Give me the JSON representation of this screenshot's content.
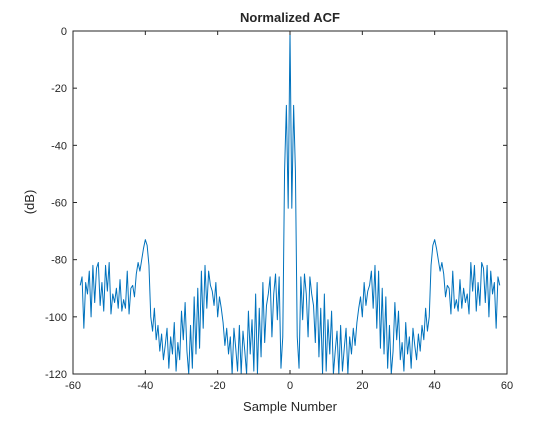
{
  "chart_data": {
    "type": "line",
    "title": "Normalized ACF",
    "xlabel": "Sample Number",
    "ylabel": "(dB)",
    "xlim": [
      -60,
      60
    ],
    "ylim": [
      -120,
      0
    ],
    "xticks": [
      "-60",
      "-40",
      "-20",
      "0",
      "20",
      "40",
      "60"
    ],
    "yticks": [
      "0",
      "-20",
      "-40",
      "-60",
      "-80",
      "-100",
      "-120"
    ],
    "grid": false,
    "line_color": "#0072BD",
    "series": [
      {
        "x": [
          -58,
          -57.5,
          -57,
          -56.5,
          -56,
          -55.5,
          -55,
          -54.5,
          -54,
          -53.5,
          -53,
          -52.5,
          -52,
          -51.5,
          -51,
          -50.5,
          -50,
          -49.5,
          -49,
          -48.5,
          -48,
          -47.5,
          -47,
          -46.5,
          -46,
          -45.5,
          -45,
          -44.5,
          -44,
          -43.5,
          -43,
          -42.5,
          -42,
          -41.5,
          -41,
          -40.5,
          -40,
          -39.5,
          -39,
          -38.5,
          -38,
          -37.5,
          -37,
          -36.5,
          -36,
          -35.5,
          -35,
          -34.5,
          -34,
          -33.5,
          -33,
          -32.5,
          -32,
          -31.5,
          -31,
          -30.5,
          -30,
          -29.5,
          -29,
          -28.5,
          -28,
          -27.5,
          -27,
          -26.5,
          -26,
          -25.5,
          -25,
          -24.5,
          -24,
          -23.5,
          -23,
          -22.5,
          -22,
          -21.5,
          -21,
          -20.5,
          -20,
          -19.5,
          -19,
          -18.5,
          -18,
          -17.5,
          -17,
          -16.5,
          -16,
          -15.5,
          -15,
          -14.5,
          -14,
          -13.5,
          -13,
          -12.5,
          -12,
          -11.5,
          -11,
          -10.5,
          -10,
          -9.5,
          -9,
          -8.5,
          -8,
          -7.5,
          -7,
          -6.5,
          -6,
          -5.5,
          -5,
          -4.5,
          -4,
          -3.5,
          -3,
          -2.5,
          -2,
          -1.5,
          -1,
          -0.5,
          0,
          0.5,
          1,
          1.5,
          2,
          2.5,
          3,
          3.5,
          4,
          4.5,
          5,
          5.5,
          6,
          6.5,
          7,
          7.5,
          8,
          8.5,
          9,
          9.5,
          10,
          10.5,
          11,
          11.5,
          12,
          12.5,
          13,
          13.5,
          14,
          14.5,
          15,
          15.5,
          16,
          16.5,
          17,
          17.5,
          18,
          18.5,
          19,
          19.5,
          20,
          20.5,
          21,
          21.5,
          22,
          22.5,
          23,
          23.5,
          24,
          24.5,
          25,
          25.5,
          26,
          26.5,
          27,
          27.5,
          28,
          28.5,
          29,
          29.5,
          30,
          30.5,
          31,
          31.5,
          32,
          32.5,
          33,
          33.5,
          34,
          34.5,
          35,
          35.5,
          36,
          36.5,
          37,
          37.5,
          38,
          38.5,
          39,
          39.5,
          40,
          40.5,
          41,
          41.5,
          42,
          42.5,
          43,
          43.5,
          44,
          44.5,
          45,
          45.5,
          46,
          46.5,
          47,
          47.5,
          48,
          48.5,
          49,
          49.5,
          50,
          50.5,
          51,
          51.5,
          52,
          52.5,
          53,
          53.5,
          54,
          54.5,
          55,
          55.5,
          56,
          56.5,
          57,
          57.5,
          58
        ],
        "y": [
          -89,
          -86,
          -104,
          -88,
          -92,
          -84,
          -100,
          -82,
          -95,
          -83,
          -81,
          -96,
          -88,
          -98,
          -82,
          -91,
          -81,
          -99,
          -92,
          -95,
          -90,
          -97,
          -87,
          -98,
          -94,
          -97,
          -84,
          -99,
          -90,
          -89,
          -93,
          -85,
          -81,
          -84,
          -80,
          -76,
          -73,
          -75,
          -82,
          -100,
          -105,
          -97,
          -108,
          -103,
          -112,
          -106,
          -115,
          -110,
          -104,
          -118,
          -107,
          -113,
          -102,
          -119,
          -109,
          -115,
          -98,
          -108,
          -95,
          -112,
          -120,
          -103,
          -118,
          -93,
          -113,
          -90,
          -111,
          -84,
          -104,
          -82,
          -97,
          -84,
          -89,
          -91,
          -96,
          -88,
          -100,
          -93,
          -97,
          -102,
          -110,
          -104,
          -113,
          -107,
          -120,
          -104,
          -111,
          -119,
          -103,
          -120,
          -105,
          -112,
          -120,
          -98,
          -113,
          -101,
          -119,
          -92,
          -120,
          -97,
          -114,
          -88,
          -109,
          -96,
          -92,
          -86,
          -107,
          -92,
          -85,
          -101,
          -86,
          -118,
          -107,
          -49,
          -26,
          -62,
          0,
          -62,
          -26,
          -49,
          -107,
          -118,
          -86,
          -101,
          -85,
          -92,
          -107,
          -86,
          -92,
          -96,
          -109,
          -88,
          -114,
          -97,
          -120,
          -92,
          -119,
          -101,
          -113,
          -98,
          -120,
          -112,
          -105,
          -120,
          -103,
          -119,
          -111,
          -104,
          -120,
          -107,
          -113,
          -104,
          -110,
          -102,
          -97,
          -93,
          -100,
          -88,
          -96,
          -91,
          -89,
          -84,
          -97,
          -82,
          -104,
          -84,
          -111,
          -90,
          -113,
          -93,
          -118,
          -103,
          -120,
          -112,
          -95,
          -108,
          -98,
          -115,
          -109,
          -119,
          -102,
          -113,
          -107,
          -118,
          -104,
          -110,
          -115,
          -106,
          -112,
          -103,
          -108,
          -97,
          -105,
          -100,
          -82,
          -75,
          -73,
          -76,
          -80,
          -84,
          -81,
          -85,
          -93,
          -89,
          -90,
          -99,
          -84,
          -97,
          -94,
          -98,
          -87,
          -97,
          -90,
          -95,
          -92,
          -99,
          -81,
          -91,
          -82,
          -98,
          -88,
          -96,
          -81,
          -83,
          -95,
          -82,
          -100,
          -84,
          -92,
          -88,
          -104,
          -86,
          -89
        ]
      }
    ]
  }
}
